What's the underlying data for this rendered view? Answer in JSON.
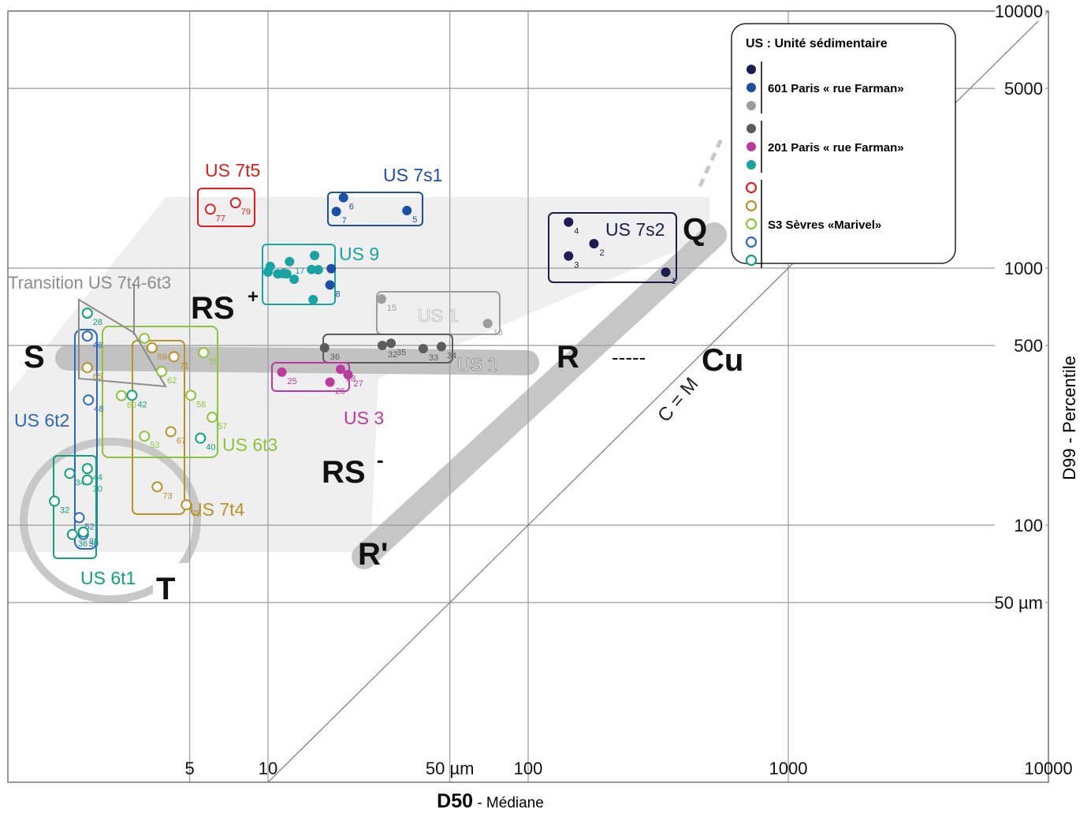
{
  "chart_data": {
    "type": "scatter",
    "scale": "log-log",
    "xlabel_bold": "D50",
    "xlabel_rest": " - Médiane",
    "ylabel": "D99 - Percentile",
    "x_ticks": [
      {
        "v": 5,
        "label": "5"
      },
      {
        "v": 10,
        "label": "10"
      },
      {
        "v": 50,
        "label": "50 µm"
      },
      {
        "v": 100,
        "label": "100"
      },
      {
        "v": 1000,
        "label": "1000"
      },
      {
        "v": 10000,
        "label": "10000"
      }
    ],
    "y_ticks": [
      {
        "v": 50,
        "label": "50 µm"
      },
      {
        "v": 100,
        "label": "100"
      },
      {
        "v": 500,
        "label": "500"
      },
      {
        "v": 1000,
        "label": "1000"
      },
      {
        "v": 5000,
        "label": "5000"
      },
      {
        "v": 10000,
        "label": "10000"
      }
    ],
    "xlim": [
      1,
      10000
    ],
    "ylim": [
      10,
      10000
    ],
    "grid": true,
    "diagonal_label": "C = M",
    "zone_labels": [
      "S",
      "T",
      "RS",
      "+",
      "RS",
      "-",
      "R'",
      "R",
      "Q",
      "Cu",
      "-----"
    ],
    "legend": {
      "title": "US : Unité sédimentaire",
      "groups": [
        {
          "label": "601 Paris « rue Farman»",
          "colors": [
            "#1c1c52",
            "#1e4fa3",
            "#9d9d9d"
          ]
        },
        {
          "label": "201 Paris « rue Farman»",
          "colors": [
            "#5c5c5c",
            "#b83c9e",
            "#1aa3a3"
          ]
        },
        {
          "label": "S3 Sèvres «Marivel»",
          "colors": [
            "#e02020",
            "#b8922a",
            "#8cc43e",
            "#2f68b5",
            "#13a07c"
          ],
          "hollow": true
        }
      ]
    },
    "series": [
      {
        "name": "US 7t5",
        "color": "#e02020",
        "hollow": true,
        "points": [
          {
            "x": 6.0,
            "y": 1695,
            "id": "77"
          },
          {
            "x": 7.5,
            "y": 1795,
            "id": "79"
          }
        ]
      },
      {
        "name": "US 7s1",
        "color": "#1e4fa3",
        "hollow": false,
        "points": [
          {
            "x": 19.5,
            "y": 1880,
            "id": "6"
          },
          {
            "x": 18.3,
            "y": 1660,
            "id": "7"
          },
          {
            "x": 34.2,
            "y": 1675,
            "id": "5"
          }
        ]
      },
      {
        "name": "US 7s2",
        "color": "#1c1c52",
        "hollow": false,
        "points": [
          {
            "x": 143,
            "y": 1510,
            "id": "4"
          },
          {
            "x": 179,
            "y": 1245,
            "id": "2"
          },
          {
            "x": 143,
            "y": 1115,
            "id": "3"
          },
          {
            "x": 338,
            "y": 964,
            "id": "1"
          }
        ]
      },
      {
        "name": "US 9",
        "color": "#1aa3a3",
        "hollow": false,
        "points": [
          {
            "x": 10.2,
            "y": 1015,
            "id": "1a"
          },
          {
            "x": 12.1,
            "y": 1060,
            "id": "17"
          },
          {
            "x": 15.1,
            "y": 1120,
            "id": ""
          },
          {
            "x": 10.0,
            "y": 965,
            "id": ""
          },
          {
            "x": 10.9,
            "y": 950,
            "id": ""
          },
          {
            "x": 11.5,
            "y": 955,
            "id": ""
          },
          {
            "x": 11.8,
            "y": 950,
            "id": ""
          },
          {
            "x": 12.6,
            "y": 905,
            "id": ""
          },
          {
            "x": 14.7,
            "y": 988,
            "id": ""
          },
          {
            "x": 15.6,
            "y": 985,
            "id": ""
          },
          {
            "x": 14.9,
            "y": 754,
            "id": ""
          }
        ]
      },
      {
        "name": "US 9 (8)",
        "color": "#1e4fa3",
        "hollow": false,
        "points": [
          {
            "x": 17.5,
            "y": 995,
            "id": ""
          },
          {
            "x": 17.3,
            "y": 860,
            "id": "8"
          }
        ]
      },
      {
        "name": "US 1 (grey)",
        "color": "#9d9d9d",
        "hollow": false,
        "points": [
          {
            "x": 27.3,
            "y": 758,
            "id": "15"
          },
          {
            "x": 69.9,
            "y": 609,
            "id": "16"
          }
        ]
      },
      {
        "name": "US 1",
        "color": "#5c5c5c",
        "hollow": false,
        "points": [
          {
            "x": 16.5,
            "y": 490,
            "id": "36"
          },
          {
            "x": 27.5,
            "y": 500,
            "id": "32"
          },
          {
            "x": 29.7,
            "y": 510,
            "id": "35"
          },
          {
            "x": 39.5,
            "y": 486,
            "id": "33"
          },
          {
            "x": 46.4,
            "y": 495,
            "id": "34"
          }
        ]
      },
      {
        "name": "US 3",
        "color": "#b83c9e",
        "hollow": false,
        "points": [
          {
            "x": 11.3,
            "y": 394,
            "id": "25"
          },
          {
            "x": 19.0,
            "y": 404,
            "id": "28"
          },
          {
            "x": 20.3,
            "y": 385,
            "id": "27"
          },
          {
            "x": 17.3,
            "y": 360,
            "id": "26"
          }
        ]
      },
      {
        "name": "US 6t2",
        "color": "#2f68b5",
        "hollow": true,
        "points": [
          {
            "x": 2.02,
            "y": 544,
            "id": "46"
          },
          {
            "x": 2.04,
            "y": 307,
            "id": "48"
          },
          {
            "x": 1.88,
            "y": 107,
            "id": "52"
          },
          {
            "x": 1.95,
            "y": 92,
            "id": "50"
          }
        ]
      },
      {
        "name": "US 7t4",
        "color": "#b8922a",
        "hollow": true,
        "points": [
          {
            "x": 2.02,
            "y": 410,
            "id": "65"
          },
          {
            "x": 3.58,
            "y": 490,
            "id": "69"
          },
          {
            "x": 4.35,
            "y": 452,
            "id": "71"
          },
          {
            "x": 4.23,
            "y": 231,
            "id": "67"
          },
          {
            "x": 3.75,
            "y": 141,
            "id": "73"
          },
          {
            "x": 4.85,
            "y": 120,
            "id": "75"
          }
        ]
      },
      {
        "name": "Transition US 7t4-6t3",
        "color": "#8cc43e",
        "hollow": true,
        "points": [
          {
            "x": 3.35,
            "y": 533,
            "id": ""
          }
        ]
      },
      {
        "name": "US 6t3",
        "color": "#8cc43e",
        "hollow": true,
        "points": [
          {
            "x": 3.9,
            "y": 396,
            "id": "62"
          },
          {
            "x": 2.73,
            "y": 319,
            "id": "60"
          },
          {
            "x": 5.05,
            "y": 320,
            "id": "58"
          },
          {
            "x": 5.65,
            "y": 469,
            "id": "55"
          },
          {
            "x": 6.1,
            "y": 263,
            "id": "57"
          },
          {
            "x": 3.35,
            "y": 222,
            "id": "53"
          }
        ]
      },
      {
        "name": "US 6t1",
        "color": "#13a07c",
        "hollow": true,
        "points": [
          {
            "x": 2.02,
            "y": 668,
            "id": "28"
          },
          {
            "x": 3.0,
            "y": 320,
            "id": "42"
          },
          {
            "x": 5.5,
            "y": 218,
            "id": "40"
          },
          {
            "x": 2.02,
            "y": 166,
            "id": "44"
          },
          {
            "x": 1.73,
            "y": 159,
            "id": "34"
          },
          {
            "x": 2.02,
            "y": 150,
            "id": "30"
          },
          {
            "x": 1.51,
            "y": 124,
            "id": "32"
          },
          {
            "x": 1.77,
            "y": 92,
            "id": "36"
          },
          {
            "x": 1.95,
            "y": 94,
            "id": "38"
          }
        ]
      }
    ],
    "groups": [
      {
        "name": "US 7t5",
        "color": "#e02020"
      },
      {
        "name": "US 7s1",
        "color": "#1e4fa3"
      },
      {
        "name": "US 7s2",
        "color": "#1c1c52"
      },
      {
        "name": "US 9",
        "color": "#1aa3a3"
      },
      {
        "name": "US 1",
        "color": "#9d9d9d"
      },
      {
        "name": "US 1",
        "color": "#5c5c5c"
      },
      {
        "name": "US 3",
        "color": "#b83c9e"
      },
      {
        "name": "US 6t2",
        "color": "#2f68b5"
      },
      {
        "name": "US 6t3",
        "color": "#8cc43e"
      },
      {
        "name": "US 7t4",
        "color": "#b8922a"
      },
      {
        "name": "US 6t1",
        "color": "#13a07c"
      },
      {
        "name": "Transition US 7t4-6t3",
        "color": "#8c8c8c"
      }
    ]
  }
}
